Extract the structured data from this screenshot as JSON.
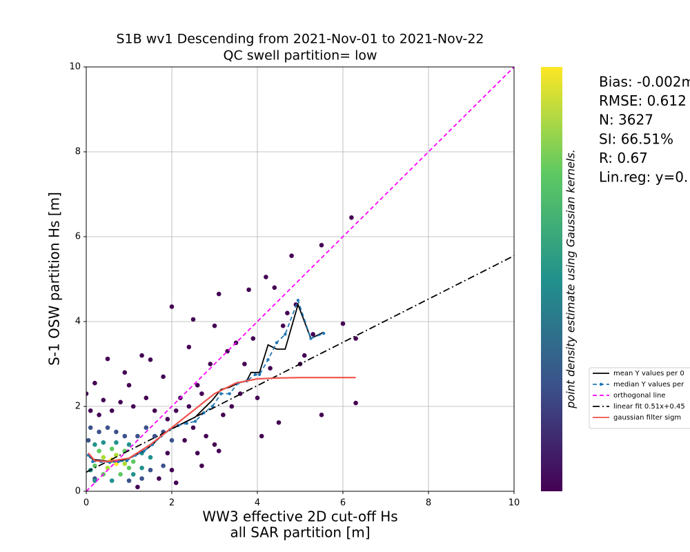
{
  "chart_data": {
    "type": "scatter",
    "title": [
      "S1B wv1 Descending from 2021-Nov-01 to 2021-Nov-22",
      "QC swell partition= low"
    ],
    "xlabel": [
      "WW3 effective 2D cut-off Hs",
      "all SAR partition [m]"
    ],
    "ylabel": "S-1 OSW partition Hs [m]",
    "xlim": [
      0,
      10
    ],
    "ylim": [
      0,
      10
    ],
    "xticks": [
      0,
      2,
      4,
      6,
      8,
      10
    ],
    "yticks": [
      0,
      2,
      4,
      6,
      8,
      10
    ],
    "grid": true,
    "legend": "right",
    "colorbar": {
      "label": "point density estimate using Gaussian kernels.",
      "colors": [
        "#440154",
        "#3b528b",
        "#21918c",
        "#5ec962",
        "#fde725"
      ]
    },
    "stats": [
      "Bias: -0.002m",
      "RMSE: 0.612",
      "N: 3627",
      "SI: 66.51%",
      "R: 0.67",
      "Lin.reg: y=0."
    ],
    "scatter": [
      {
        "color": "#440154",
        "x": [
          2.0,
          2.5,
          3.1,
          3.8,
          4.2,
          4.4,
          4.8,
          5.5,
          6.2,
          6.0,
          6.3,
          6.3,
          5.5,
          4.5,
          4.1,
          3.1,
          2.7,
          2.1,
          1.2,
          0.5,
          0.2,
          0.0,
          0.4,
          1.3,
          1.5,
          0.9,
          1.0,
          1.8,
          2.2,
          2.4,
          2.6,
          2.9,
          3.0,
          3.3,
          3.5,
          3.6,
          3.7,
          3.9,
          4.0,
          4.3,
          4.6,
          4.7,
          4.9,
          5.1,
          5.0,
          5.3,
          2.3,
          2.5,
          2.8,
          3.2,
          3.4,
          2.0,
          1.7,
          1.9,
          2.6,
          3.0,
          0.1,
          0.3,
          0.6,
          0.8,
          1.1,
          1.4,
          1.6,
          1.9,
          2.1,
          2.4,
          2.7
        ],
        "y": [
          4.35,
          4.05,
          4.65,
          4.75,
          5.05,
          4.8,
          5.55,
          5.8,
          6.45,
          3.95,
          3.6,
          2.08,
          1.8,
          1.62,
          1.3,
          0.95,
          0.6,
          0.2,
          0.1,
          3.12,
          2.55,
          2.3,
          2.15,
          3.2,
          3.1,
          2.8,
          2.5,
          2.7,
          2.2,
          3.4,
          2.5,
          3.0,
          3.9,
          3.3,
          3.5,
          2.3,
          3.0,
          3.6,
          2.2,
          2.9,
          3.9,
          4.2,
          4.4,
          3.2,
          3.0,
          3.7,
          1.2,
          1.5,
          1.3,
          1.8,
          2.0,
          0.5,
          0.3,
          0.9,
          0.9,
          1.1,
          1.9,
          1.8,
          1.9,
          2.1,
          2.0,
          2.2,
          1.9,
          1.7,
          1.9,
          2.0,
          2.3
        ]
      },
      {
        "color": "#3b528b",
        "x": [
          0.1,
          0.3,
          0.5,
          0.7,
          0.9,
          1.2,
          1.4,
          1.6,
          1.8,
          1.5,
          1.3,
          1.0,
          0.2,
          0.05,
          2.0,
          1.8
        ],
        "y": [
          1.5,
          1.4,
          1.5,
          1.4,
          1.3,
          1.3,
          1.5,
          1.3,
          1.4,
          0.5,
          0.3,
          0.25,
          0.3,
          1.2,
          1.2,
          0.6
        ]
      },
      {
        "color": "#21918c",
        "x": [
          0.2,
          0.4,
          0.7,
          1.0,
          1.3,
          1.3,
          0.1,
          0.2,
          0.6,
          1.1,
          1.5
        ],
        "y": [
          1.1,
          1.15,
          1.15,
          1.1,
          0.9,
          0.55,
          0.5,
          0.25,
          0.25,
          0.4,
          0.8
        ]
      },
      {
        "color": "#5ec962",
        "x": [
          0.3,
          0.6,
          0.9,
          1.1,
          0.2,
          0.4,
          0.8,
          1.0
        ],
        "y": [
          0.95,
          1.0,
          0.95,
          0.7,
          0.6,
          0.4,
          0.4,
          0.55
        ]
      },
      {
        "color": "#addc30",
        "x": [
          0.4,
          0.7,
          0.5,
          0.9
        ],
        "y": [
          0.8,
          0.85,
          0.55,
          0.65
        ]
      },
      {
        "color": "#fde725",
        "x": [
          0.55,
          0.7,
          0.6
        ],
        "y": [
          0.7,
          0.65,
          0.75
        ]
      }
    ],
    "series": [
      {
        "name": "mean Y values per 0",
        "color": "#000000",
        "linestyle": "solid",
        "marker": false,
        "x": [
          0.05,
          0.15,
          0.35,
          0.55,
          0.75,
          0.95,
          1.15,
          1.35,
          1.55,
          1.75,
          1.95,
          2.15,
          2.35,
          2.55,
          2.75,
          2.95,
          3.15,
          3.35,
          3.55,
          3.75,
          3.85,
          4.05,
          4.25,
          4.45,
          4.65,
          4.95,
          5.25,
          5.55
        ],
        "values": [
          0.9,
          0.75,
          0.73,
          0.7,
          0.72,
          0.75,
          0.85,
          0.95,
          1.1,
          1.3,
          1.45,
          1.55,
          1.65,
          1.75,
          1.95,
          2.15,
          2.4,
          2.45,
          2.55,
          2.6,
          2.8,
          2.8,
          3.45,
          3.35,
          3.35,
          4.4,
          3.6,
          3.75
        ]
      },
      {
        "name": "median Y values per",
        "color": "#1f77b4",
        "linestyle": "dashed",
        "marker": true,
        "x": [
          0.05,
          0.15,
          0.35,
          0.55,
          0.75,
          0.95,
          1.15,
          1.35,
          1.55,
          1.75,
          1.95,
          2.15,
          2.35,
          2.55,
          2.75,
          2.95,
          3.15,
          3.35,
          3.55,
          3.75,
          3.95,
          4.05,
          4.25,
          4.45,
          4.65,
          4.95,
          5.25,
          5.55
        ],
        "values": [
          0.85,
          0.7,
          0.7,
          0.68,
          0.7,
          0.72,
          0.85,
          0.95,
          1.1,
          1.3,
          1.45,
          1.55,
          1.6,
          1.65,
          1.85,
          2.0,
          2.3,
          2.3,
          2.55,
          2.6,
          2.75,
          2.75,
          3.1,
          3.5,
          3.7,
          4.5,
          3.6,
          3.72
        ]
      },
      {
        "name": "orthogonal line",
        "color": "#ff00ff",
        "linestyle": "dashed",
        "marker": false,
        "x": [
          0,
          10
        ],
        "values": [
          0,
          10
        ]
      },
      {
        "name": "linear fit 0.51x+0.45",
        "color": "#000000",
        "linestyle": "dashdot",
        "marker": false,
        "x": [
          0,
          10
        ],
        "values": [
          0.45,
          5.55
        ]
      },
      {
        "name": "gaussian filter sigm",
        "color": "#f0504a",
        "linestyle": "solid",
        "marker": false,
        "x": [
          0.05,
          0.2,
          0.5,
          1.0,
          1.5,
          2.0,
          2.5,
          3.0,
          3.5,
          4.0,
          4.5,
          5.0,
          6.3
        ],
        "values": [
          0.9,
          0.72,
          0.7,
          0.78,
          1.1,
          1.5,
          1.9,
          2.3,
          2.55,
          2.65,
          2.67,
          2.68,
          2.68
        ]
      }
    ]
  }
}
